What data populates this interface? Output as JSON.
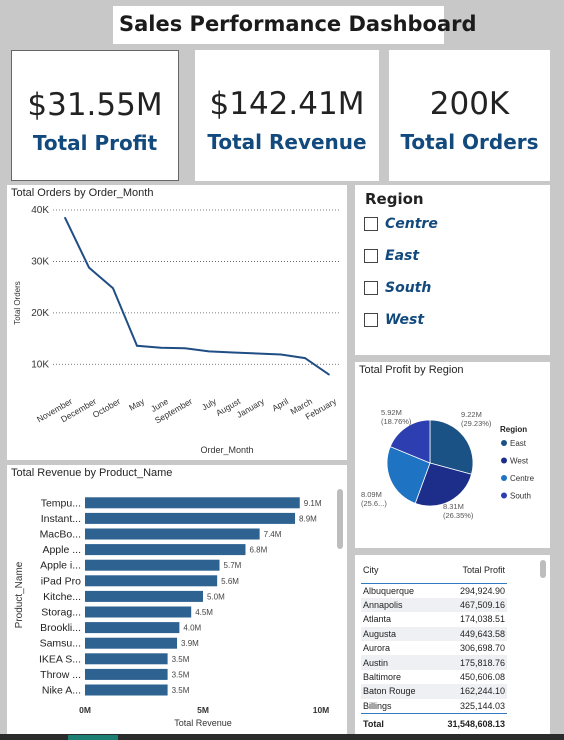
{
  "title": "Sales Performance Dashboard",
  "kpis": {
    "profit": {
      "value": "$31.55M",
      "label": "Total Profit"
    },
    "revenue": {
      "value": "$142.41M",
      "label": "Total Revenue"
    },
    "orders": {
      "value": "200K",
      "label": "Total Orders"
    }
  },
  "slicer": {
    "title": "Region",
    "options": [
      "Centre",
      "East",
      "South",
      "West"
    ]
  },
  "line_chart": {
    "title": "Total Orders by Order_Month"
  },
  "bar_chart": {
    "title": "Total Revenue by Product_Name"
  },
  "pie_chart": {
    "title": "Total Profit by Region"
  },
  "city_table": {
    "headers": [
      "City",
      "Total Profit"
    ],
    "rows": [
      [
        "Albuquerque",
        "294,924.90"
      ],
      [
        "Annapolis",
        "467,509.16"
      ],
      [
        "Atlanta",
        "174,038.51"
      ],
      [
        "Augusta",
        "449,643.58"
      ],
      [
        "Aurora",
        "306,698.70"
      ],
      [
        "Austin",
        "175,818.76"
      ],
      [
        "Baltimore",
        "450,606.08"
      ],
      [
        "Baton Rouge",
        "162,244.10"
      ],
      [
        "Billings",
        "325,144.03"
      ]
    ],
    "total_label": "Total",
    "total_value": "31,548,608.13"
  },
  "colors": {
    "accent": "#124a7e",
    "line": "#1f4e84",
    "bar": "#2e6291",
    "pie": [
      "#1a5286",
      "#1c2e8a",
      "#1e73c2",
      "#2d3eb0"
    ]
  },
  "chart_data": [
    {
      "type": "line",
      "title": "Total Orders by Order_Month",
      "xlabel": "Order_Month",
      "ylabel": "Total Orders",
      "x": [
        "November",
        "December",
        "October",
        "May",
        "June",
        "September",
        "July",
        "August",
        "January",
        "April",
        "March",
        "February"
      ],
      "values": [
        38500,
        28800,
        24800,
        13600,
        13200,
        13100,
        12500,
        12300,
        12100,
        11900,
        11200,
        8000
      ],
      "yticks": [
        "10K",
        "20K",
        "30K",
        "40K"
      ],
      "ylim": [
        5000,
        40000
      ],
      "grid": true
    },
    {
      "type": "bar",
      "orientation": "horizontal",
      "title": "Total Revenue by Product_Name",
      "xlabel": "Total Revenue",
      "ylabel": "Product_Name",
      "categories": [
        "Tempu...",
        "Instant...",
        "MacBo...",
        "Apple ...",
        "Apple i...",
        "iPad Pro",
        "Kitche...",
        "Storag...",
        "Brookli...",
        "Samsu...",
        "IKEA S...",
        "Throw ...",
        "Nike A..."
      ],
      "values": [
        9.1,
        8.9,
        7.4,
        6.8,
        5.7,
        5.6,
        5.0,
        4.5,
        4.0,
        3.9,
        3.5,
        3.5,
        3.5
      ],
      "data_labels": [
        "9.1M",
        "8.9M",
        "7.4M",
        "6.8M",
        "5.7M",
        "5.6M",
        "5.0M",
        "4.5M",
        "4.0M",
        "3.9M",
        "3.5M",
        "3.5M",
        "3.5M"
      ],
      "xticks": [
        "0M",
        "5M",
        "10M"
      ],
      "xlim": [
        0,
        10
      ]
    },
    {
      "type": "pie",
      "title": "Total Profit by Region",
      "legend_title": "Region",
      "legend_placement": "right",
      "categories": [
        "East",
        "West",
        "Centre",
        "South"
      ],
      "values": [
        9.22,
        8.31,
        8.09,
        5.92
      ],
      "data_labels": [
        [
          "9.22M",
          "(29.23%)"
        ],
        [
          "8.31M",
          "(26.35%)"
        ],
        [
          "8.09M",
          "(25.6...)"
        ],
        [
          "5.92M",
          "(18.76%)"
        ]
      ]
    }
  ]
}
